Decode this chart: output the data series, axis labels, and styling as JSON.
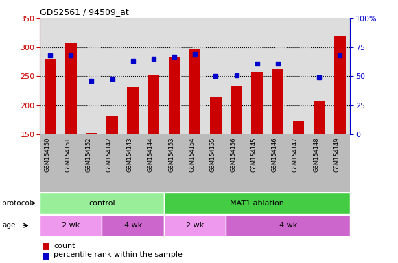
{
  "title": "GDS2561 / 94509_at",
  "samples": [
    "GSM154150",
    "GSM154151",
    "GSM154152",
    "GSM154142",
    "GSM154143",
    "GSM154144",
    "GSM154153",
    "GSM154154",
    "GSM154155",
    "GSM154156",
    "GSM154145",
    "GSM154146",
    "GSM154147",
    "GSM154148",
    "GSM154149"
  ],
  "bar_values": [
    280,
    307,
    152,
    182,
    232,
    253,
    284,
    297,
    215,
    233,
    258,
    262,
    173,
    207,
    320
  ],
  "dot_values": [
    68,
    68,
    46,
    48,
    63,
    65,
    67,
    69,
    50,
    51,
    61,
    61,
    null,
    49,
    68
  ],
  "bar_bottom": 150,
  "ylim_left": [
    150,
    350
  ],
  "ylim_right": [
    0,
    100
  ],
  "yticks_left": [
    150,
    200,
    250,
    300,
    350
  ],
  "yticks_right": [
    0,
    25,
    50,
    75,
    100
  ],
  "bar_color": "#cc0000",
  "dot_color": "#0000cc",
  "protocol_groups": [
    {
      "label": "control",
      "start": 0,
      "end": 6,
      "color": "#99ee99"
    },
    {
      "label": "MAT1 ablation",
      "start": 6,
      "end": 15,
      "color": "#44cc44"
    }
  ],
  "age_groups": [
    {
      "label": "2 wk",
      "start": 0,
      "end": 3,
      "color": "#ee99ee"
    },
    {
      "label": "4 wk",
      "start": 3,
      "end": 6,
      "color": "#cc66cc"
    },
    {
      "label": "2 wk",
      "start": 6,
      "end": 9,
      "color": "#ee99ee"
    },
    {
      "label": "4 wk",
      "start": 9,
      "end": 15,
      "color": "#cc66cc"
    }
  ],
  "legend_count_label": "count",
  "legend_pct_label": "percentile rank within the sample",
  "bar_color_label": "#cc0000",
  "dot_color_label": "#0000cc",
  "plot_bg_color": "#dddddd",
  "xlabel_area_color": "#bbbbbb"
}
